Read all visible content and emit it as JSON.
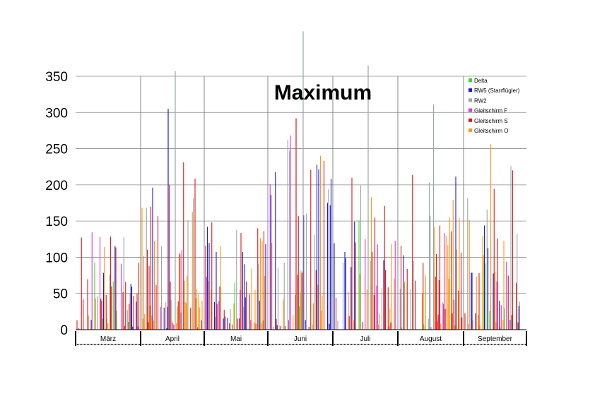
{
  "chart_data": {
    "type": "bar",
    "title": "Maximum",
    "xlabel": "",
    "ylabel": "",
    "ylim": [
      0,
      350
    ],
    "yticks": [
      "0",
      "50",
      "100",
      "150",
      "200",
      "250",
      "300",
      "350"
    ],
    "grid": true,
    "legend_position": "top-right",
    "months": [
      "März",
      "April",
      "Mai",
      "Juni",
      "Juli",
      "August",
      "September"
    ],
    "series": [
      {
        "name": "Delta",
        "color": "#33dd22"
      },
      {
        "name": "RW5 (Starrflügler)",
        "color": "#1a1adb"
      },
      {
        "name": "RW2",
        "color": "#9aa6a6"
      },
      {
        "name": "Gleitschirm F",
        "color": "#e233e2"
      },
      {
        "name": "Gleitschirm S",
        "color": "#e01818"
      },
      {
        "name": "Gleitschirm O",
        "color": "#ff9a10"
      }
    ],
    "peaks": [
      {
        "month": "April",
        "series": "RW2",
        "value": 357
      },
      {
        "month": "April",
        "series": "RW5 (Starrflügler)",
        "value": 305
      },
      {
        "month": "Juni",
        "series": "RW2",
        "value": 412
      },
      {
        "month": "Juni",
        "series": "Gleitschirm S",
        "value": 292
      },
      {
        "month": "Juli",
        "series": "RW2",
        "value": 365
      },
      {
        "month": "August",
        "series": "RW2",
        "value": 311
      },
      {
        "month": "September",
        "series": "Gleitschirm O",
        "value": 256
      }
    ]
  }
}
